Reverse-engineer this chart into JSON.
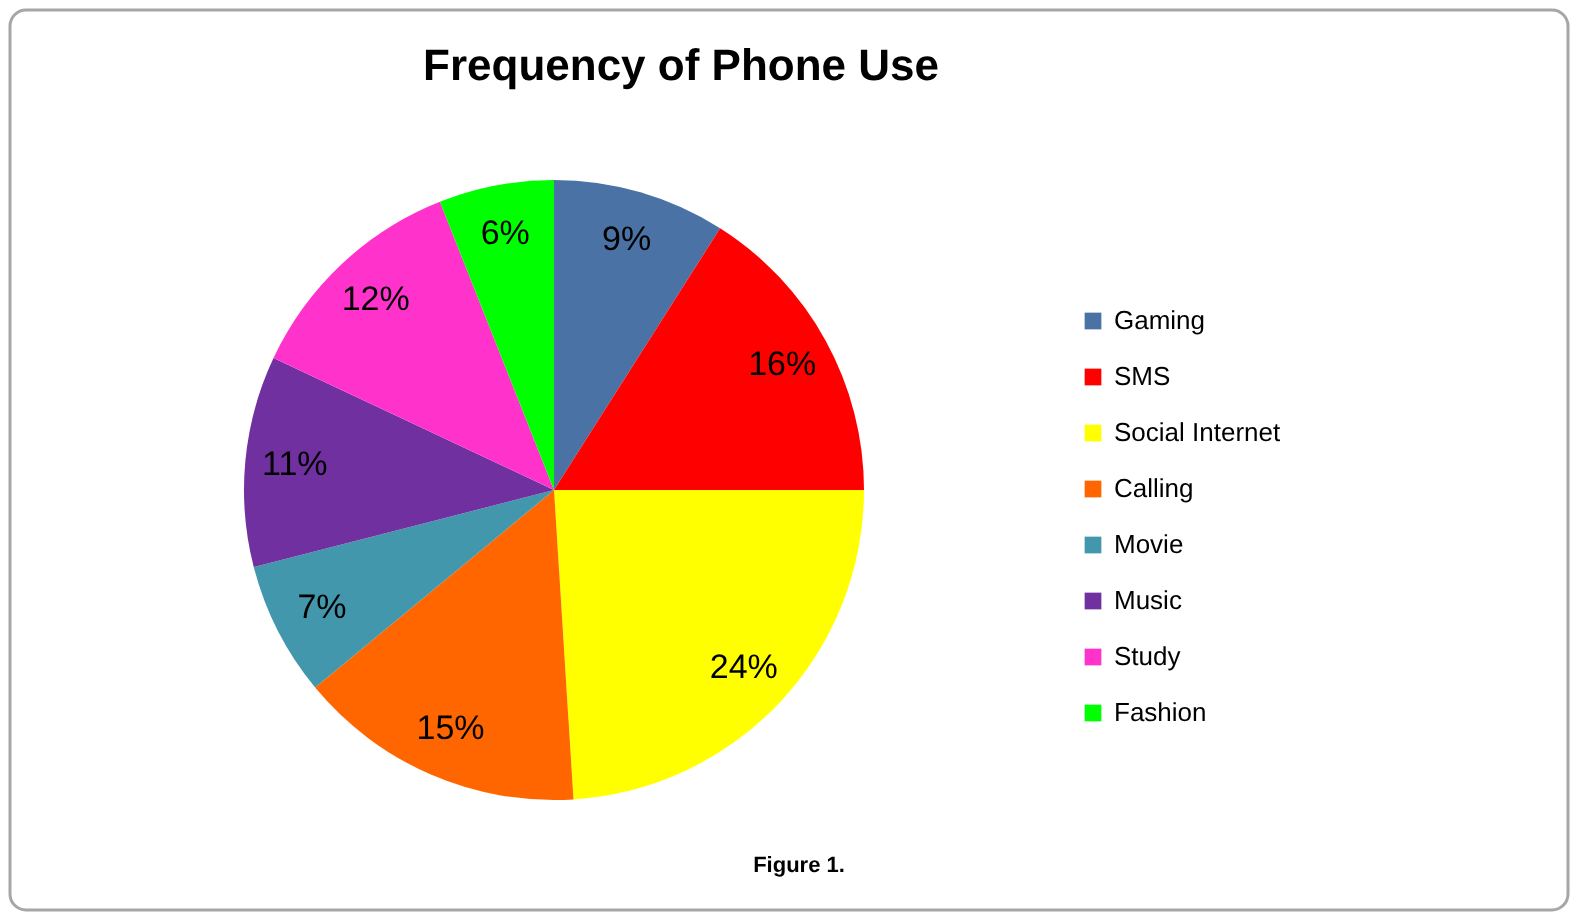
{
  "chart_data": {
    "type": "pie",
    "title": "Frequency of Phone Use",
    "categories": [
      "Gaming",
      "SMS",
      "Social Internet",
      "Calling",
      "Movie",
      "Music",
      "Study",
      "Fashion"
    ],
    "values": [
      9,
      16,
      24,
      15,
      7,
      11,
      12,
      6
    ],
    "colors": [
      "#4a72a5",
      "#ff0000",
      "#ffff00",
      "#ff6600",
      "#4397ad",
      "#7030a0",
      "#ff33cc",
      "#00ff00"
    ],
    "value_labels": [
      "9%",
      "16%",
      "24%",
      "15%",
      "7%",
      "11%",
      "12%",
      "6%"
    ],
    "legend": "right",
    "annotations": [
      "Figure 1."
    ]
  }
}
